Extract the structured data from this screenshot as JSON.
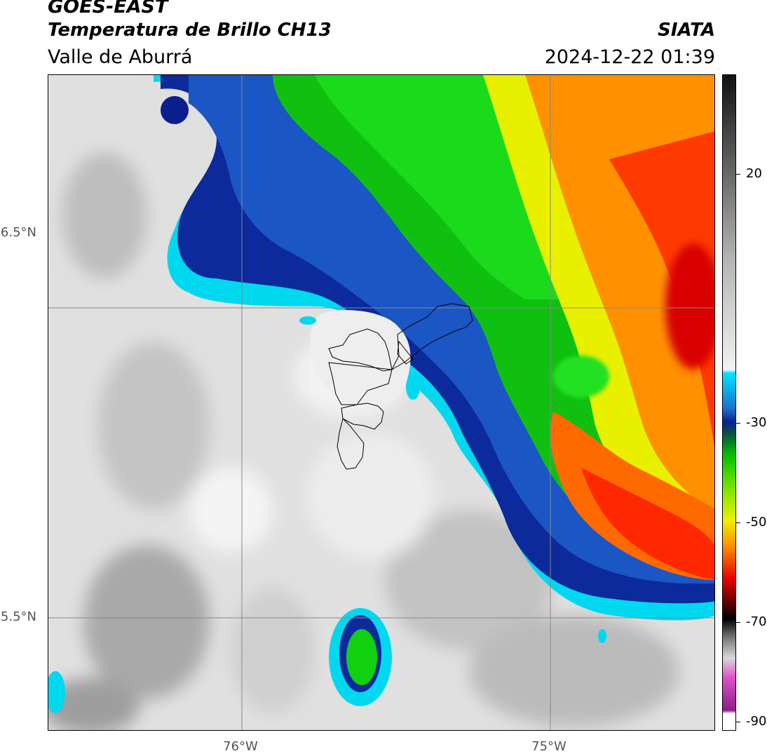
{
  "header": {
    "satellite": "GOES-EAST",
    "product": "Temperatura de Brillo CH13",
    "region": "Valle de Aburrá",
    "agency": "SIATA",
    "datetime": "2024-12-22 01:39"
  },
  "axes": {
    "lat_labels": [
      "6.5°N",
      "5.5°N"
    ],
    "lon_labels": [
      "76°W",
      "75°W"
    ]
  },
  "colorbar": {
    "tick_labels": [
      "20",
      "-30",
      "-50",
      "-70",
      "-90"
    ],
    "colors": {
      "warm_gray_top": "#111111",
      "light_gray": "#f2f2f2",
      "cyan": "#00e5ff",
      "dark_blue": "#0a1f8f",
      "green": "#00e000",
      "yellow": "#f0f000",
      "orange": "#ff8c00",
      "red": "#e60000",
      "black": "#000000",
      "magenta": "#e050c8",
      "purple": "#8a1f8a"
    }
  }
}
